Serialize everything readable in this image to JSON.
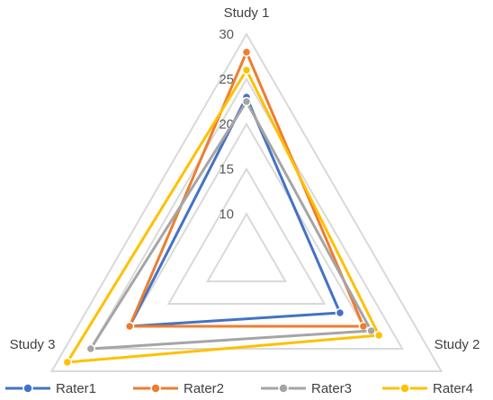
{
  "chart_data": {
    "type": "radar",
    "title": "",
    "axes": [
      "Study 1",
      "Study 2",
      "Study 3"
    ],
    "rmin": 5,
    "rmax": 30,
    "ticks": [
      10,
      15,
      20,
      25,
      30
    ],
    "grid": true,
    "legend_position": "bottom",
    "series": [
      {
        "name": "Rater1",
        "color": "#4472C4",
        "values": [
          23,
          17,
          20
        ]
      },
      {
        "name": "Rater2",
        "color": "#ED7D31",
        "values": [
          28,
          20,
          20
        ]
      },
      {
        "name": "Rater3",
        "color": "#A5A5A5",
        "values": [
          22.5,
          21,
          25
        ]
      },
      {
        "name": "Rater4",
        "color": "#FFC000",
        "values": [
          26,
          22,
          28
        ]
      }
    ]
  }
}
